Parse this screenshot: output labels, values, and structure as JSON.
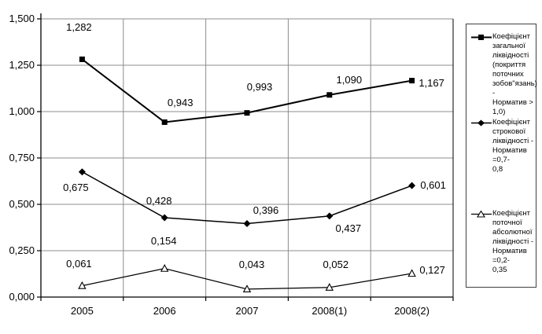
{
  "chart_data": {
    "type": "line",
    "categories": [
      "2005",
      "2006",
      "2007",
      "2008(1)",
      "2008(2)"
    ],
    "series": [
      {
        "name": "Коефіцієнт загальної ліквідності (покриття поточних зобов\"язань) - Норматив > 1,0)",
        "marker": "square-filled",
        "values": [
          1.282,
          0.943,
          0.993,
          1.09,
          1.167
        ],
        "labels": [
          "1,282",
          "0,943",
          "0,993",
          "1,090",
          "1,167"
        ],
        "label_offsets": [
          [
            -4,
            -40
          ],
          [
            20,
            -24
          ],
          [
            16,
            -33
          ],
          [
            25,
            -19
          ],
          [
            25,
            3
          ]
        ],
        "line_width": 2
      },
      {
        "name": "Коефіцієнт строкової ліквідності - Норматив =0,7-0,8",
        "marker": "diamond-filled",
        "values": [
          0.675,
          0.428,
          0.396,
          0.437,
          0.601
        ],
        "labels": [
          "0,675",
          "0,428",
          "0,396",
          "0,437",
          "0,601"
        ],
        "label_offsets": [
          [
            -8,
            20
          ],
          [
            -7,
            -21
          ],
          [
            24,
            -17
          ],
          [
            24,
            16
          ],
          [
            27,
            0
          ]
        ],
        "line_width": 1.5
      },
      {
        "name": "Коефіцієнт поточної абсолютної ліквідності - Норматив =0,2-0,35",
        "marker": "triangle-open",
        "values": [
          0.061,
          0.154,
          0.043,
          0.052,
          0.127
        ],
        "labels": [
          "0,061",
          "0,154",
          "0,043",
          "0,052",
          "0,127"
        ],
        "label_offsets": [
          [
            -4,
            -28
          ],
          [
            -1,
            -35
          ],
          [
            6,
            -31
          ],
          [
            8,
            -29
          ],
          [
            26,
            -4
          ]
        ],
        "line_width": 1.2
      }
    ],
    "y_ticks": [
      "0,000",
      "0,250",
      "0,500",
      "0,750",
      "1,000",
      "1,250",
      "1,500"
    ],
    "y_tick_values": [
      0,
      0.25,
      0.5,
      0.75,
      1.0,
      1.25,
      1.5
    ],
    "ylim": [
      0,
      1.5
    ],
    "grid": true,
    "legend_position": "right",
    "title": "",
    "xlabel": "",
    "ylabel": ""
  },
  "legend": {
    "items": [
      {
        "label": "Коефіцієнт\nзагальної\nліквідності\n(покриття\nпоточних\nзобов\"язань) -\nНорматив >\n1,0)",
        "marker": "square-filled"
      },
      {
        "label": "Коефіцієнт\nстрокової\nліквідності -\nНорматив =0,7-\n0,8",
        "marker": "diamond-filled"
      },
      {
        "label": "Коефіцієнт\nпоточної\nабсолютної\nліквідності -\nНорматив =0,2-\n0,35",
        "marker": "triangle-open"
      }
    ]
  },
  "colors": {
    "series_line": "#000000",
    "grid": "#8c8c8c",
    "axis": "#000000",
    "background": "#ffffff",
    "marker_fill": "#000000",
    "marker_open_fill": "#ffffff"
  }
}
